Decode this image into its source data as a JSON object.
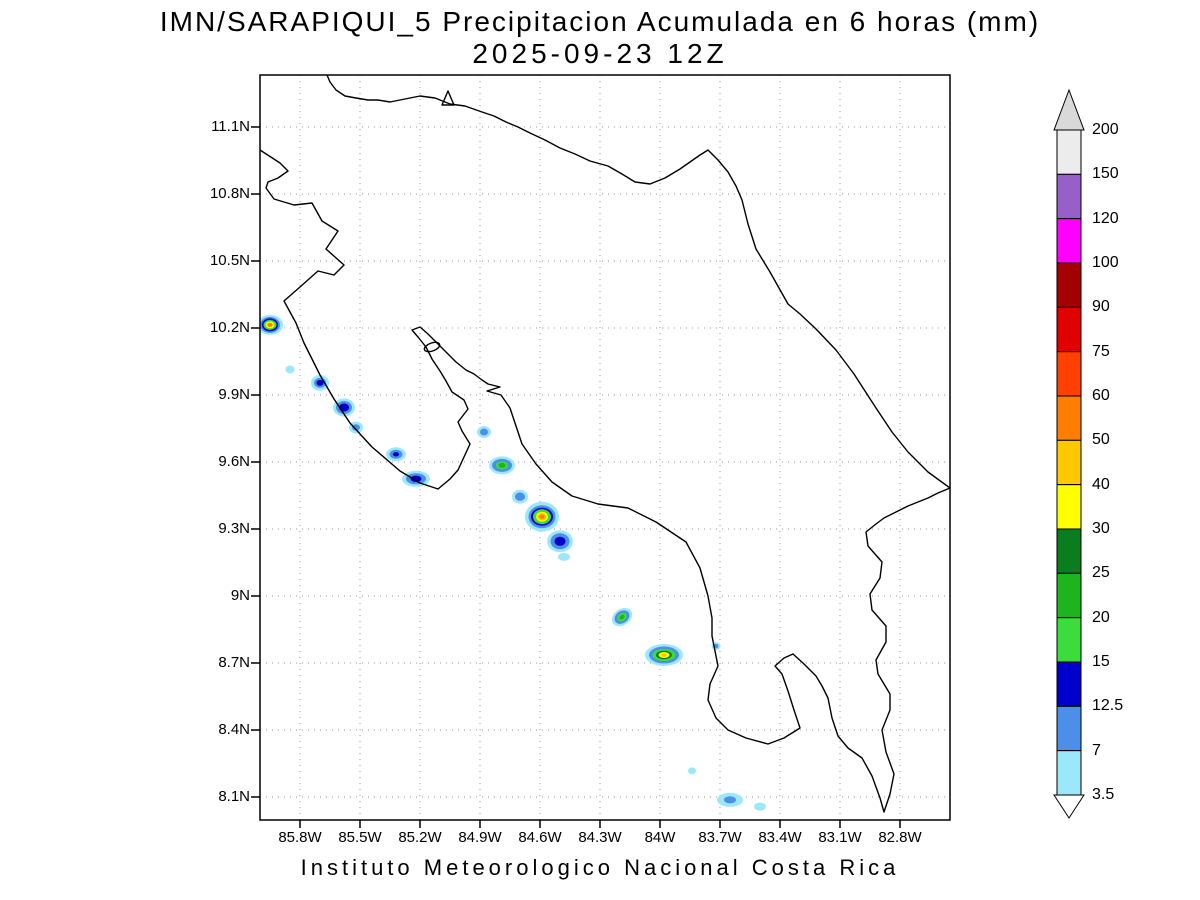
{
  "title": "IMN/SARAPIQUI_5 Precipitacion Acumulada en 6 horas (mm)",
  "subtitle": "2025-09-23 12Z",
  "footer": "Instituto Meteorologico Nacional Costa Rica",
  "axes": {
    "lat_labels": [
      "11.1N",
      "10.8N",
      "10.5N",
      "10.2N",
      "9.9N",
      "9.6N",
      "9.3N",
      "9N",
      "8.7N",
      "8.4N",
      "8.1N"
    ],
    "lon_labels": [
      "85.8W",
      "85.5W",
      "85.2W",
      "84.9W",
      "84.6W",
      "84.3W",
      "84W",
      "83.7W",
      "83.4W",
      "83.1W",
      "82.8W"
    ]
  },
  "colorbar": {
    "levels": [
      "200",
      "150",
      "120",
      "100",
      "90",
      "75",
      "60",
      "50",
      "40",
      "30",
      "25",
      "20",
      "15",
      "12.5",
      "7",
      "3.5"
    ],
    "segment_colors": [
      "#ececec",
      "#9660c8",
      "#ff00ff",
      "#a50000",
      "#e00000",
      "#ff4000",
      "#ff7d00",
      "#ffc800",
      "#ffff00",
      "#0a7d1e",
      "#1eb41e",
      "#3cdc3c",
      "#0000cd",
      "#4d8fe8",
      "#9ce8fa"
    ],
    "arrow_top_color": "#d9d9d9",
    "arrow_bottom_color": "#ffffff"
  },
  "chart_data": {
    "type": "heatmap",
    "subtype": "filled-contour-precipitation-map",
    "variable": "Precipitacion Acumulada en 6 horas (mm)",
    "model_run": "2025-09-23 12Z",
    "region": {
      "lon_min": -86.0,
      "lon_max": -82.55,
      "lat_min": 8.0,
      "lat_max": 11.34
    },
    "levels_mm": [
      3.5,
      7,
      12.5,
      15,
      20,
      25,
      30,
      40,
      50,
      60,
      75,
      90,
      100,
      120,
      150,
      200
    ],
    "grid": "dashed",
    "legend_position": "right",
    "cells": [
      {
        "lon": -85.95,
        "lat": 10.22,
        "rings": [
          [
            3.5,
            13,
            10
          ],
          [
            7,
            10,
            8
          ],
          [
            12.5,
            8,
            6.5
          ],
          [
            15,
            6.5,
            5
          ],
          [
            30,
            4.5,
            3.5
          ],
          [
            50,
            2.6,
            2
          ]
        ]
      },
      {
        "lon": -85.85,
        "lat": 10.02,
        "rings": [
          [
            3.5,
            4.5,
            4
          ]
        ]
      },
      {
        "lon": -85.7,
        "lat": 9.96,
        "rings": [
          [
            3.5,
            9,
            8
          ],
          [
            7,
            6,
            5
          ],
          [
            12.5,
            3.5,
            3
          ]
        ]
      },
      {
        "lon": -85.58,
        "lat": 9.85,
        "rings": [
          [
            3.5,
            11,
            9
          ],
          [
            7,
            8,
            6.5
          ],
          [
            12.5,
            5,
            4
          ]
        ]
      },
      {
        "lon": -85.52,
        "lat": 9.76,
        "rings": [
          [
            3.5,
            7,
            6
          ],
          [
            7,
            4,
            3.2
          ]
        ]
      },
      {
        "lon": -85.32,
        "lat": 9.64,
        "rings": [
          [
            3.5,
            10,
            7
          ],
          [
            7,
            6.5,
            4.5
          ],
          [
            12.5,
            3,
            2.2
          ]
        ]
      },
      {
        "lon": -85.22,
        "lat": 9.53,
        "rings": [
          [
            3.5,
            14,
            8
          ],
          [
            7,
            10,
            5.5
          ],
          [
            12.5,
            5.5,
            3.2
          ]
        ]
      },
      {
        "lon": -84.88,
        "lat": 9.74,
        "rings": [
          [
            3.5,
            7,
            6
          ],
          [
            7,
            4,
            3.5
          ]
        ]
      },
      {
        "lon": -84.79,
        "lat": 9.59,
        "rings": [
          [
            3.5,
            13,
            9
          ],
          [
            7,
            10,
            6.5
          ],
          [
            15,
            6,
            4
          ],
          [
            20,
            3.5,
            2.5
          ]
        ]
      },
      {
        "lon": -84.7,
        "lat": 9.45,
        "rings": [
          [
            3.5,
            8,
            7
          ],
          [
            7,
            5,
            4.2
          ]
        ]
      },
      {
        "lon": -84.59,
        "lat": 9.36,
        "rings": [
          [
            3.5,
            17,
            15
          ],
          [
            7,
            13.5,
            11.5
          ],
          [
            12.5,
            11,
            9
          ],
          [
            15,
            9,
            7.5
          ],
          [
            30,
            6,
            5
          ],
          [
            40,
            4.3,
            3.6
          ],
          [
            50,
            2.6,
            2.2
          ]
        ]
      },
      {
        "lon": -84.5,
        "lat": 9.25,
        "rings": [
          [
            3.5,
            13,
            11
          ],
          [
            7,
            9.5,
            8
          ],
          [
            12.5,
            5.5,
            4.5
          ]
        ]
      },
      {
        "lon": -84.48,
        "lat": 9.18,
        "rings": [
          [
            3.5,
            6,
            4
          ]
        ]
      },
      {
        "lon": -84.19,
        "lat": 8.91,
        "rot": -35,
        "rings": [
          [
            3.5,
            11,
            8
          ],
          [
            7,
            8,
            6
          ],
          [
            15,
            5,
            3.8
          ],
          [
            20,
            2.8,
            2
          ]
        ]
      },
      {
        "lon": -83.98,
        "lat": 8.74,
        "rings": [
          [
            3.5,
            19,
            11
          ],
          [
            7,
            15,
            8.5
          ],
          [
            15,
            11.5,
            6
          ],
          [
            25,
            8,
            4.2
          ],
          [
            30,
            5.5,
            3
          ],
          [
            40,
            2.6,
            1.6
          ]
        ]
      },
      {
        "lon": -83.72,
        "lat": 8.78,
        "rings": [
          [
            3.5,
            4.5,
            4
          ],
          [
            7,
            2.5,
            2.2
          ]
        ]
      },
      {
        "lon": -83.84,
        "lat": 8.22,
        "rings": [
          [
            3.5,
            4,
            3.5
          ]
        ]
      },
      {
        "lon": -83.65,
        "lat": 8.09,
        "rings": [
          [
            3.5,
            13,
            7
          ],
          [
            7,
            6,
            3.5
          ]
        ]
      },
      {
        "lon": -83.5,
        "lat": 8.06,
        "rings": [
          [
            3.5,
            6,
            4
          ]
        ]
      }
    ]
  }
}
